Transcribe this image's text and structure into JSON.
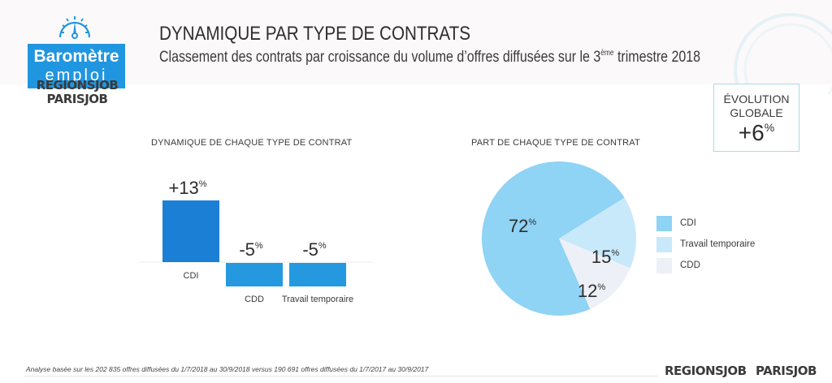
{
  "header": {
    "logo": {
      "line1": "Baromètre",
      "line2": "emploi",
      "brand1": "REGIONSJOB",
      "brand2": "PARISJOB"
    },
    "title": "DYNAMIQUE PAR TYPE DE CONTRATS",
    "subtitle_prefix": "Classement des contrats par croissance du volume d’offres diffusées sur le 3",
    "subtitle_sup": "ème",
    "subtitle_suffix": " trimestre 2018",
    "accent_color": "#2196e0"
  },
  "evolution": {
    "label_line1": "ÉVOLUTION",
    "label_line2": "GLOBALE",
    "value": "+6",
    "unit": "%"
  },
  "chart_data": [
    {
      "type": "bar",
      "title": "DYNAMIQUE DE CHAQUE TYPE DE CONTRAT",
      "categories": [
        "CDI",
        "CDD",
        "Travail temporaire"
      ],
      "values": [
        13,
        -5,
        -5
      ],
      "value_labels": [
        "+13",
        "-5",
        "-5"
      ],
      "unit": "%",
      "xlabel": "",
      "ylabel": "",
      "ylim": [
        -5,
        13
      ],
      "grid": false,
      "colors": [
        "#1b7fd6",
        "#2599e0",
        "#2599e0"
      ]
    },
    {
      "type": "pie",
      "title": "PART DE CHAQUE TYPE DE CONTRAT",
      "categories": [
        "CDI",
        "Travail temporaire",
        "CDD"
      ],
      "values": [
        72,
        15,
        12
      ],
      "value_labels": [
        "72",
        "15",
        "12"
      ],
      "unit": "%",
      "colors": [
        "#8fd3f5",
        "#c8e9fa",
        "#eef0f8"
      ],
      "legend": "right"
    }
  ],
  "footer": {
    "note": "Analyse basée sur les 202 835 offres diffusées du 1/7/2018 au 30/9/2018 versus 190 691 offres diffusées du 1/7/2017 au 30/9/2017",
    "brand1": "REGIONSJOB",
    "brand2": "PARISJOB"
  }
}
